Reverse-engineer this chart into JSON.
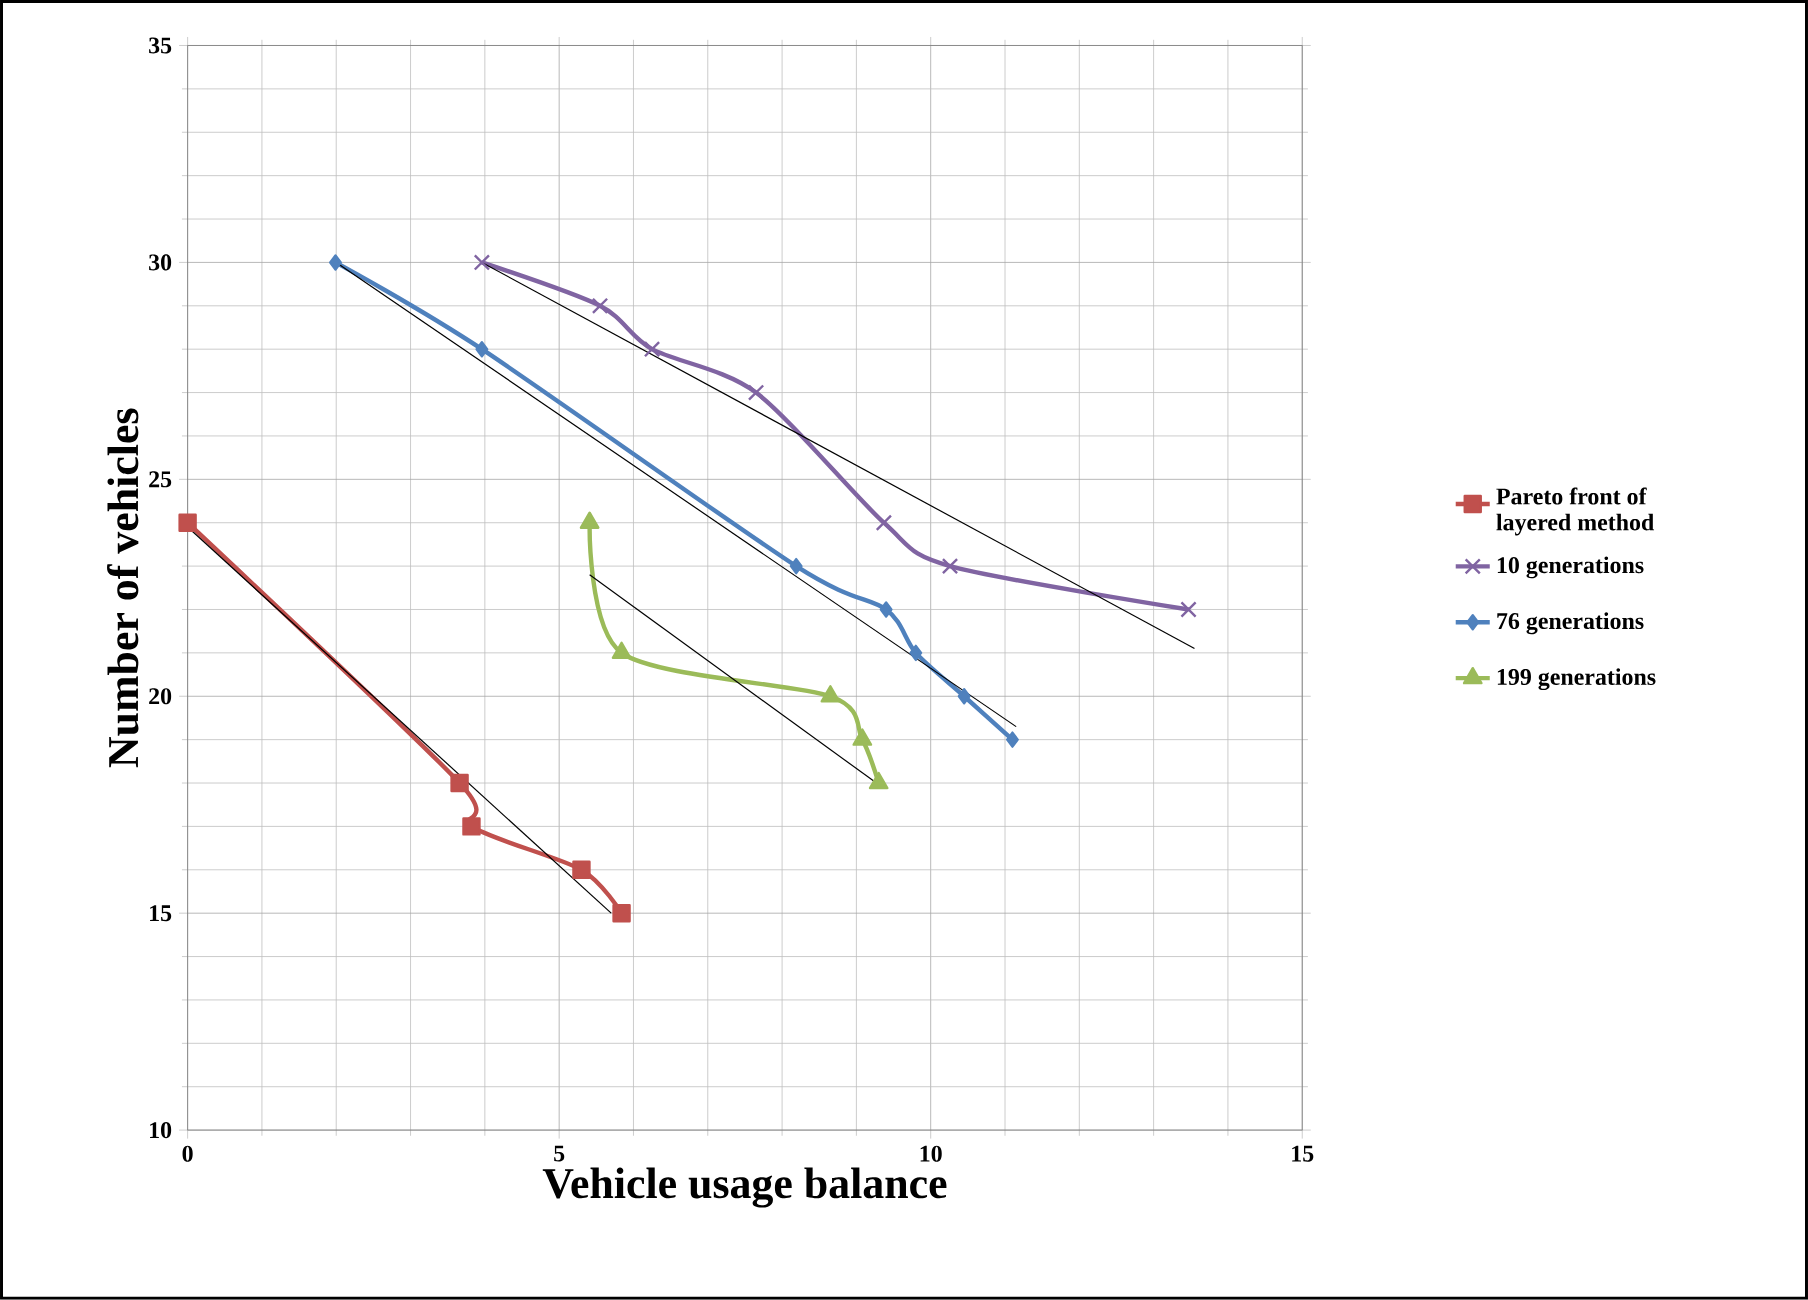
{
  "chart_data": {
    "type": "line",
    "xlabel": "Vehicle usage balance",
    "ylabel": "Number of vehicles",
    "xlim": [
      0,
      15
    ],
    "ylim": [
      10,
      35
    ],
    "xticks": [
      0,
      5,
      10,
      15
    ],
    "yticks": [
      10,
      15,
      20,
      25,
      30,
      35
    ],
    "grid": true,
    "legend": "right",
    "series": [
      {
        "name": "Pareto front of layered method",
        "color": "#c0504d",
        "marker": "square",
        "x": [
          0,
          3.66,
          3.82,
          5.3,
          5.84
        ],
        "values": [
          24,
          18,
          17,
          16,
          15
        ]
      },
      {
        "name": "10 generations",
        "color": "#8064a2",
        "marker": "cross",
        "x": [
          3.96,
          5.55,
          6.25,
          7.65,
          9.37,
          10.26,
          13.47
        ],
        "values": [
          30,
          29,
          28,
          27,
          24,
          23,
          22
        ]
      },
      {
        "name": "76 generations",
        "color": "#4f81bd",
        "marker": "diamond",
        "x": [
          1.99,
          3.96,
          8.19,
          9.4,
          9.8,
          10.45,
          11.1
        ],
        "values": [
          30,
          28,
          23,
          22,
          21,
          20,
          19
        ]
      },
      {
        "name": "199 generations",
        "color": "#9bbb59",
        "marker": "triangle",
        "x": [
          5.41,
          5.84,
          8.65,
          9.08,
          9.3
        ],
        "values": [
          24,
          21,
          20,
          19,
          18
        ]
      },
      {
        "color": "#000000",
        "marker": "none",
        "x": [
          0,
          5.7
        ],
        "values": [
          23.9,
          15
        ]
      },
      {
        "color": "#000000",
        "marker": "none",
        "x": [
          3.96,
          13.55
        ],
        "values": [
          30,
          21.1
        ]
      },
      {
        "color": "#000000",
        "marker": "none",
        "x": [
          2,
          11.15
        ],
        "values": [
          30,
          19.3
        ]
      },
      {
        "color": "#000000",
        "marker": "none",
        "x": [
          5.41,
          9.35
        ],
        "values": [
          22.8,
          17.9
        ]
      }
    ]
  }
}
